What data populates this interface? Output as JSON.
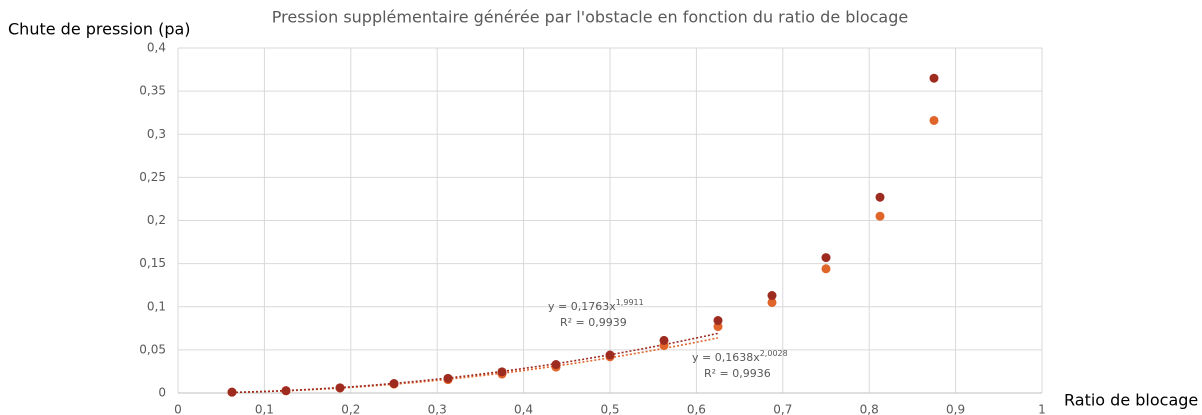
{
  "chart_data": {
    "type": "scatter",
    "title": "Pression supplémentaire générée par l'obstacle en fonction du ratio de blocage",
    "y_label": "Chute de pression (pa)",
    "x_label": "Ratio de blocage",
    "xlim": [
      0,
      1
    ],
    "ylim": [
      0,
      0.4
    ],
    "xticks": [
      0,
      {
        "value": 0.1,
        "label": "0,1"
      },
      {
        "value": 0.2,
        "label": "0,2"
      },
      {
        "value": 0.3,
        "label": "0,3"
      },
      {
        "value": 0.4,
        "label": "0,4"
      },
      {
        "value": 0.5,
        "label": "0,5"
      },
      {
        "value": 0.6,
        "label": "0,6"
      },
      {
        "value": 0.7,
        "label": "0,7"
      },
      {
        "value": 0.8,
        "label": "0,8"
      },
      {
        "value": 0.9,
        "label": "0,9"
      },
      1
    ],
    "yticks": [
      0,
      {
        "value": 0.05,
        "label": "0,05"
      },
      {
        "value": 0.1,
        "label": "0,1"
      },
      {
        "value": 0.15,
        "label": "0,15"
      },
      {
        "value": 0.2,
        "label": "0,2"
      },
      {
        "value": 0.25,
        "label": "0,25"
      },
      {
        "value": 0.3,
        "label": "0,3"
      },
      {
        "value": 0.35,
        "label": "0,35"
      },
      {
        "value": 0.4,
        "label": "0,4"
      }
    ],
    "grid": true,
    "x": [
      0.0625,
      0.125,
      0.1875,
      0.25,
      0.3125,
      0.375,
      0.4375,
      0.5,
      0.5625,
      0.625,
      0.6875,
      0.75,
      0.8125,
      0.875
    ],
    "series": [
      {
        "color": "#e0652b",
        "values": [
          0.001,
          0.0025,
          0.0058,
          0.0103,
          0.0155,
          0.022,
          0.03,
          0.042,
          0.055,
          0.077,
          0.105,
          0.144,
          0.205,
          0.316
        ],
        "trendline": {
          "coefficient": 0.1638,
          "exponent": 2.0028,
          "xlim": [
            0.0625,
            0.625
          ],
          "equation": "y = 0,1638x",
          "equation_exponent": "2,0028",
          "r_squared": "R² = 0,9936"
        }
      },
      {
        "color": "#9e2b20",
        "values": [
          0.001,
          0.0027,
          0.006,
          0.011,
          0.017,
          0.0245,
          0.033,
          0.044,
          0.061,
          0.084,
          0.113,
          0.157,
          0.227,
          0.365
        ],
        "trendline": {
          "coefficient": 0.1763,
          "exponent": 1.9911,
          "xlim": [
            0.0625,
            0.625
          ],
          "equation": "y = 0,1763x",
          "equation_exponent": "1,9911",
          "r_squared": "R² = 0,9939"
        }
      }
    ]
  }
}
